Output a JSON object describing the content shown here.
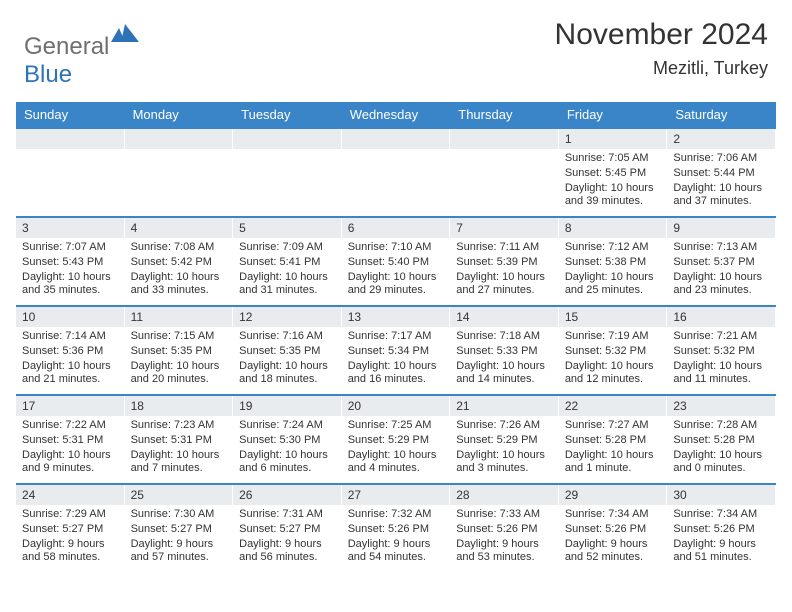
{
  "brand": {
    "part1": "General",
    "part2": "Blue"
  },
  "title": "November 2024",
  "location": "Mezitli, Turkey",
  "columns": [
    "Sunday",
    "Monday",
    "Tuesday",
    "Wednesday",
    "Thursday",
    "Friday",
    "Saturday"
  ],
  "colors": {
    "headerBg": "#3a84c8",
    "headerText": "#ffffff",
    "dayStrip": "#e9ecef",
    "rowBorder": "#3a84c8",
    "logoGray": "#6f6f6f",
    "logoBlue": "#2e72b8"
  },
  "weeks": [
    [
      {
        "day": null
      },
      {
        "day": null
      },
      {
        "day": null
      },
      {
        "day": null
      },
      {
        "day": null
      },
      {
        "day": 1,
        "sunrise": "7:05 AM",
        "sunset": "5:45 PM",
        "daylight": "10 hours and 39 minutes."
      },
      {
        "day": 2,
        "sunrise": "7:06 AM",
        "sunset": "5:44 PM",
        "daylight": "10 hours and 37 minutes."
      }
    ],
    [
      {
        "day": 3,
        "sunrise": "7:07 AM",
        "sunset": "5:43 PM",
        "daylight": "10 hours and 35 minutes."
      },
      {
        "day": 4,
        "sunrise": "7:08 AM",
        "sunset": "5:42 PM",
        "daylight": "10 hours and 33 minutes."
      },
      {
        "day": 5,
        "sunrise": "7:09 AM",
        "sunset": "5:41 PM",
        "daylight": "10 hours and 31 minutes."
      },
      {
        "day": 6,
        "sunrise": "7:10 AM",
        "sunset": "5:40 PM",
        "daylight": "10 hours and 29 minutes."
      },
      {
        "day": 7,
        "sunrise": "7:11 AM",
        "sunset": "5:39 PM",
        "daylight": "10 hours and 27 minutes."
      },
      {
        "day": 8,
        "sunrise": "7:12 AM",
        "sunset": "5:38 PM",
        "daylight": "10 hours and 25 minutes."
      },
      {
        "day": 9,
        "sunrise": "7:13 AM",
        "sunset": "5:37 PM",
        "daylight": "10 hours and 23 minutes."
      }
    ],
    [
      {
        "day": 10,
        "sunrise": "7:14 AM",
        "sunset": "5:36 PM",
        "daylight": "10 hours and 21 minutes."
      },
      {
        "day": 11,
        "sunrise": "7:15 AM",
        "sunset": "5:35 PM",
        "daylight": "10 hours and 20 minutes."
      },
      {
        "day": 12,
        "sunrise": "7:16 AM",
        "sunset": "5:35 PM",
        "daylight": "10 hours and 18 minutes."
      },
      {
        "day": 13,
        "sunrise": "7:17 AM",
        "sunset": "5:34 PM",
        "daylight": "10 hours and 16 minutes."
      },
      {
        "day": 14,
        "sunrise": "7:18 AM",
        "sunset": "5:33 PM",
        "daylight": "10 hours and 14 minutes."
      },
      {
        "day": 15,
        "sunrise": "7:19 AM",
        "sunset": "5:32 PM",
        "daylight": "10 hours and 12 minutes."
      },
      {
        "day": 16,
        "sunrise": "7:21 AM",
        "sunset": "5:32 PM",
        "daylight": "10 hours and 11 minutes."
      }
    ],
    [
      {
        "day": 17,
        "sunrise": "7:22 AM",
        "sunset": "5:31 PM",
        "daylight": "10 hours and 9 minutes."
      },
      {
        "day": 18,
        "sunrise": "7:23 AM",
        "sunset": "5:31 PM",
        "daylight": "10 hours and 7 minutes."
      },
      {
        "day": 19,
        "sunrise": "7:24 AM",
        "sunset": "5:30 PM",
        "daylight": "10 hours and 6 minutes."
      },
      {
        "day": 20,
        "sunrise": "7:25 AM",
        "sunset": "5:29 PM",
        "daylight": "10 hours and 4 minutes."
      },
      {
        "day": 21,
        "sunrise": "7:26 AM",
        "sunset": "5:29 PM",
        "daylight": "10 hours and 3 minutes."
      },
      {
        "day": 22,
        "sunrise": "7:27 AM",
        "sunset": "5:28 PM",
        "daylight": "10 hours and 1 minute."
      },
      {
        "day": 23,
        "sunrise": "7:28 AM",
        "sunset": "5:28 PM",
        "daylight": "10 hours and 0 minutes."
      }
    ],
    [
      {
        "day": 24,
        "sunrise": "7:29 AM",
        "sunset": "5:27 PM",
        "daylight": "9 hours and 58 minutes."
      },
      {
        "day": 25,
        "sunrise": "7:30 AM",
        "sunset": "5:27 PM",
        "daylight": "9 hours and 57 minutes."
      },
      {
        "day": 26,
        "sunrise": "7:31 AM",
        "sunset": "5:27 PM",
        "daylight": "9 hours and 56 minutes."
      },
      {
        "day": 27,
        "sunrise": "7:32 AM",
        "sunset": "5:26 PM",
        "daylight": "9 hours and 54 minutes."
      },
      {
        "day": 28,
        "sunrise": "7:33 AM",
        "sunset": "5:26 PM",
        "daylight": "9 hours and 53 minutes."
      },
      {
        "day": 29,
        "sunrise": "7:34 AM",
        "sunset": "5:26 PM",
        "daylight": "9 hours and 52 minutes."
      },
      {
        "day": 30,
        "sunrise": "7:34 AM",
        "sunset": "5:26 PM",
        "daylight": "9 hours and 51 minutes."
      }
    ]
  ]
}
